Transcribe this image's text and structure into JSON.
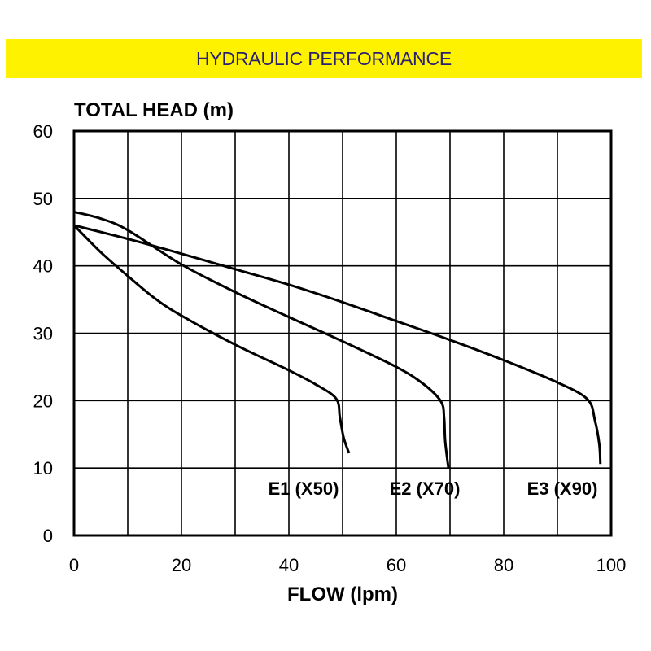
{
  "header": {
    "title": "HYDRAULIC PERFORMANCE",
    "background": "#fff200",
    "text_color": "#2a2070"
  },
  "chart_data": {
    "type": "line",
    "title": "HYDRAULIC PERFORMANCE",
    "xlabel": "FLOW (lpm)",
    "ylabel": "TOTAL HEAD (m)",
    "xlim": [
      0,
      100
    ],
    "ylim": [
      0,
      60
    ],
    "xticks": [
      0,
      20,
      40,
      60,
      80,
      100
    ],
    "yticks": [
      0,
      10,
      20,
      30,
      40,
      50,
      60
    ],
    "grid": {
      "x_step": 10,
      "y_step": 10
    },
    "series": [
      {
        "name": "E1 (X50)",
        "x": [
          0,
          5,
          10,
          15,
          20,
          30,
          40,
          45,
          48.8,
          49.5,
          50.2,
          51.2
        ],
        "y": [
          46,
          42,
          38.5,
          35.2,
          32.6,
          28.3,
          24.5,
          22.4,
          20.3,
          17.5,
          14.5,
          12.2
        ]
      },
      {
        "name": "E2 (X70)",
        "x": [
          0,
          5,
          10,
          20,
          30,
          40,
          50,
          60,
          65,
          68.3,
          68.9,
          69.1,
          69.7
        ],
        "y": [
          48,
          47,
          45.3,
          40.2,
          36.1,
          32.4,
          28.8,
          25,
          22.5,
          19.9,
          17.5,
          14,
          10
        ]
      },
      {
        "name": "E3 (X90)",
        "x": [
          0,
          10,
          20,
          30,
          40,
          50,
          60,
          70,
          80,
          90,
          95.6,
          97,
          97.8,
          98
        ],
        "y": [
          46,
          44,
          41.8,
          39.5,
          37.2,
          34.6,
          31.8,
          29,
          26,
          22.7,
          20.2,
          17,
          13.5,
          10.6
        ]
      }
    ]
  }
}
